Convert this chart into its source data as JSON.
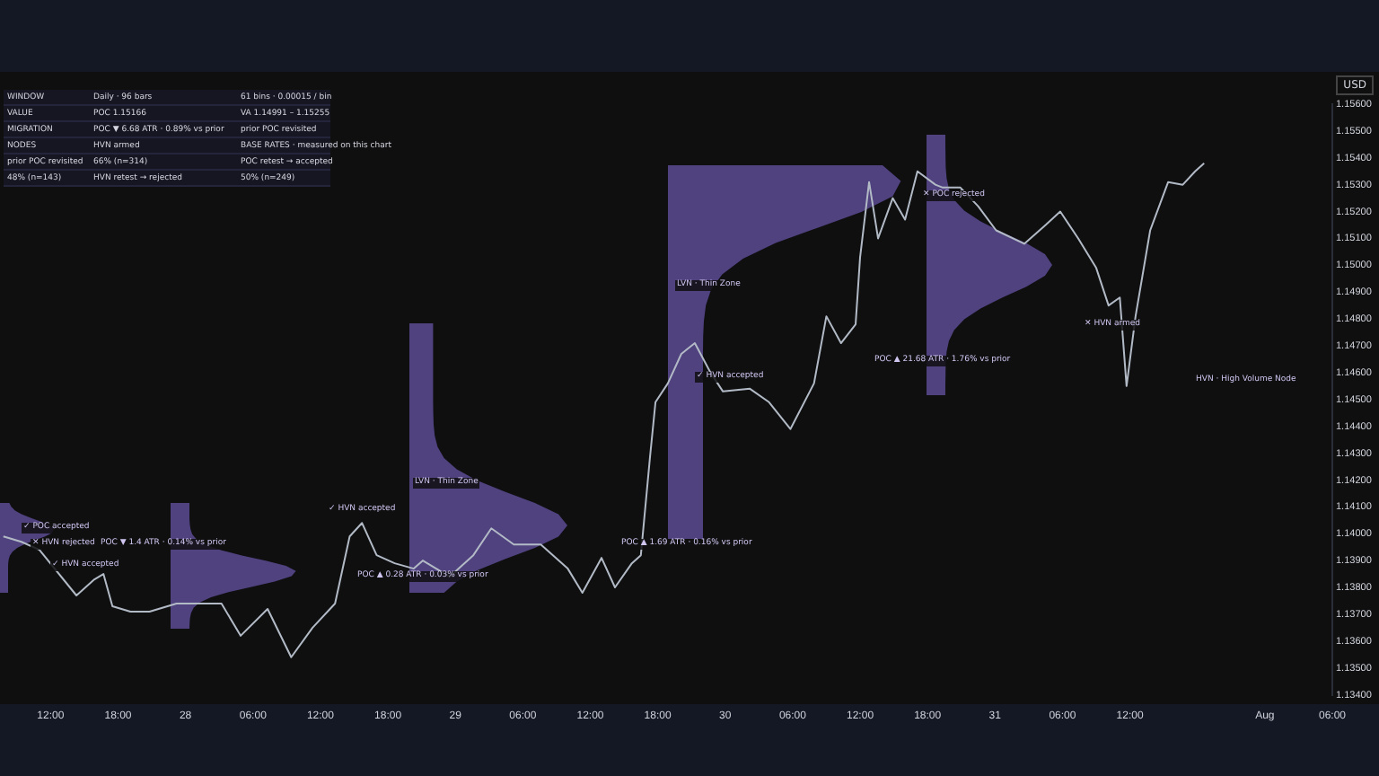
{
  "chart_data": {
    "type": "line",
    "annotations": [
      "WINDOW",
      "Daily · 96 bars",
      "61 bins · 0.00015 / bin",
      "VALUE",
      "POC 1.15166",
      "VA 1.14991 – 1.15255",
      "MIGRATION",
      "POC ▼ 6.68 ATR · 0.89% vs prior",
      "prior POC revisited",
      "NODES",
      "HVN armed",
      "BASE RATES · measured on this chart",
      "prior POC revisited",
      "66% (n=314)",
      "POC retest → accepted",
      "48% (n=143)",
      "HVN retest → rejected",
      "50% (n=249)",
      "✓ POC accepted",
      "✕ HVN rejected",
      "✓ HVN accepted",
      "POC ▼ 1.4 ATR · 0.14% vs prior",
      "✓ HVN accepted",
      "POC ▲ 0.28 ATR · 0.03% vs prior",
      "LVN · Thin Zone",
      "POC ▲ 1.69 ATR · 0.16% vs prior",
      "LVN · Thin Zone",
      "✓ HVN accepted",
      "POC ▲ 21.68 ATR · 1.76% vs prior",
      "✕ POC rejected",
      "✕ HVN armed",
      "HVN · High Volume Node"
    ],
    "ylabel": "USD",
    "x": [
      "--07-27T07:48",
      "--07-27T09:24",
      "--07-27T11:00",
      "--07-27T14:18",
      "--07-27T15:54",
      "--07-27T16:42",
      "--07-27T17:30",
      "--07-27T19:06",
      "--07-27T20:48",
      "--07-27T23:12",
      "--07-28T03:12",
      "--07-28T04:54",
      "--07-28T07:18",
      "--07-28T09:24",
      "--07-28T11:18",
      "--07-28T13:18",
      "--07-28T14:36",
      "--07-28T15:42",
      "--07-28T17:00",
      "--07-28T18:36",
      "--07-28T20:18",
      "--07-28T21:06",
      "--07-28T23:30",
      "--07-29T01:36",
      "--07-29T03:12",
      "--07-29T05:12",
      "--07-29T07:36",
      "--07-29T10:00",
      "--07-29T11:18",
      "--07-29T13:00",
      "--07-29T14:12",
      "--07-29T15:42",
      "--07-29T16:30",
      "--07-29T17:18",
      "--07-29T17:48",
      "--07-29T18:54",
      "--07-29T20:06",
      "--07-29T21:18",
      "--07-29T22:42",
      "--07-29T23:48",
      "--07-30T02:12",
      "--07-30T03:54",
      "--07-30T05:48",
      "--07-30T07:54",
      "--07-30T09:00",
      "--07-30T10:18",
      "--07-30T11:36",
      "--07-30T12:00",
      "--07-30T12:48",
      "--07-30T13:36",
      "--07-30T14:54",
      "--07-30T16:00",
      "--07-30T17:06",
      "--07-30T18:42",
      "--07-30T19:18",
      "--07-30T20:54",
      "--07-30T22:30",
      "--07-31T00:06",
      "--07-31T02:36",
      "--07-31T04:30",
      "--07-31T05:48",
      "--07-31T07:24",
      "--07-31T09:00",
      "--07-31T10:06",
      "--07-31T11:06",
      "--07-31T11:42",
      "--07-31T12:30",
      "--07-31T13:48",
      "--07-31T15:24",
      "--07-31T16:42",
      "--07-31T17:48",
      "--07-31T18:36"
    ],
    "series": [
      {
        "color": "#b2bac6",
        "values": [
          1.1399,
          1.1397,
          1.1394,
          1.1377,
          1.1383,
          1.1385,
          1.1373,
          1.1371,
          1.1371,
          1.1374,
          1.1374,
          1.1362,
          1.1372,
          1.1354,
          1.1365,
          1.1374,
          1.1399,
          1.1404,
          1.1392,
          1.1389,
          1.1387,
          1.139,
          1.1384,
          1.1392,
          1.1402,
          1.1396,
          1.1396,
          1.1387,
          1.1378,
          1.1391,
          1.138,
          1.1389,
          1.1392,
          1.1428,
          1.1449,
          1.1456,
          1.1467,
          1.1471,
          1.146,
          1.1453,
          1.1454,
          1.1449,
          1.1439,
          1.1456,
          1.1481,
          1.1471,
          1.1478,
          1.1503,
          1.1531,
          1.151,
          1.1525,
          1.1517,
          1.1535,
          1.153,
          1.1529,
          1.1529,
          1.1522,
          1.1513,
          1.1508,
          1.1515,
          1.152,
          1.151,
          1.1499,
          1.1485,
          1.1488,
          1.1455,
          1.1481,
          1.1513,
          1.1531,
          1.153,
          1.1535,
          1.1538
        ]
      }
    ],
    "xlim": [
      "--07-27T07:30",
      "--08-01T06:00"
    ],
    "xticks": [
      {
        "value": "--07-27T12:00",
        "label": "12:00"
      },
      {
        "value": "--07-27T18:00",
        "label": "18:00"
      },
      {
        "value": "--07-28",
        "label": "28"
      },
      {
        "value": "--07-28T06:00",
        "label": "06:00"
      },
      {
        "value": "--07-28T12:00",
        "label": "12:00"
      },
      {
        "value": "--07-28T18:00",
        "label": "18:00"
      },
      {
        "value": "--07-29",
        "label": "29"
      },
      {
        "value": "--07-29T06:00",
        "label": "06:00"
      },
      {
        "value": "--07-29T12:00",
        "label": "12:00"
      },
      {
        "value": "--07-29T18:00",
        "label": "18:00"
      },
      {
        "value": "--07-30",
        "label": "30"
      },
      {
        "value": "--07-30T06:00",
        "label": "06:00"
      },
      {
        "value": "--07-30T12:00",
        "label": "12:00"
      },
      {
        "value": "--07-30T18:00",
        "label": "18:00"
      },
      {
        "value": "--07-31",
        "label": "31"
      },
      {
        "value": "--07-31T06:00",
        "label": "06:00"
      },
      {
        "value": "--07-31T12:00",
        "label": "12:00"
      },
      {
        "value": "--08-01",
        "label": "Aug"
      },
      {
        "value": "--08-01T06:00",
        "label": "06:00"
      }
    ],
    "ylim": [
      1.134,
      1.156
    ],
    "yticks": [
      {
        "value": 1.134,
        "label": "1.13400"
      },
      {
        "value": 1.135,
        "label": "1.13500"
      },
      {
        "value": 1.136,
        "label": "1.13600"
      },
      {
        "value": 1.137,
        "label": "1.13700"
      },
      {
        "value": 1.138,
        "label": "1.13800"
      },
      {
        "value": 1.139,
        "label": "1.13900"
      },
      {
        "value": 1.14,
        "label": "1.14000"
      },
      {
        "value": 1.141,
        "label": "1.14100"
      },
      {
        "value": 1.142,
        "label": "1.14200"
      },
      {
        "value": 1.143,
        "label": "1.14300"
      },
      {
        "value": 1.144,
        "label": "1.14400"
      },
      {
        "value": 1.145,
        "label": "1.14500"
      },
      {
        "value": 1.146,
        "label": "1.14600"
      },
      {
        "value": 1.147,
        "label": "1.14700"
      },
      {
        "value": 1.148,
        "label": "1.14800"
      },
      {
        "value": 1.149,
        "label": "1.14900"
      },
      {
        "value": 1.15,
        "label": "1.15000"
      },
      {
        "value": 1.151,
        "label": "1.15100"
      },
      {
        "value": 1.152,
        "label": "1.15200"
      },
      {
        "value": 1.153,
        "label": "1.15300"
      },
      {
        "value": 1.154,
        "label": "1.15400"
      },
      {
        "value": 1.155,
        "label": "1.15500"
      },
      {
        "value": 1.156,
        "label": "1.15600"
      }
    ],
    "grid": false,
    "legend": false,
    "marker": "none",
    "line_style": "solid"
  }
}
